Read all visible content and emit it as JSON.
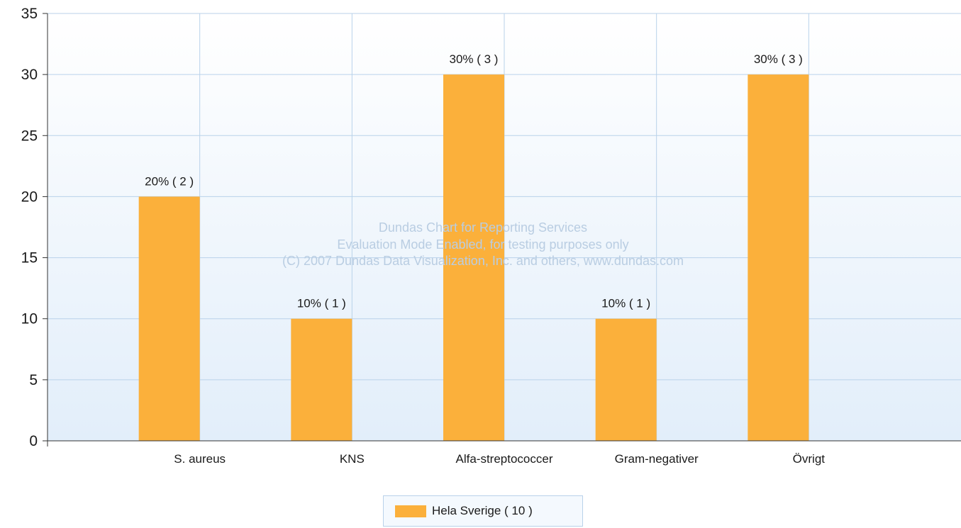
{
  "chart_data": {
    "type": "bar",
    "categories": [
      "S. aureus",
      "KNS",
      "Alfa-streptococcer",
      "Gram-negativer",
      "Övrigt"
    ],
    "series": [
      {
        "name": "Hela Sverige  ( 10 )",
        "color": "#fbb03b",
        "values": [
          20,
          10,
          30,
          10,
          30
        ],
        "labels": [
          "20% ( 2 )",
          "10% ( 1 )",
          "30% ( 3 )",
          "10% ( 1 )",
          "30% ( 3 )"
        ]
      }
    ],
    "title": "",
    "xlabel": "",
    "ylabel": "",
    "ylim": [
      0,
      35
    ],
    "yticks": [
      0,
      5,
      10,
      15,
      20,
      25,
      30,
      35
    ],
    "grid": true,
    "legend_position": "bottom-center",
    "watermark": [
      "Dundas Chart for Reporting Services",
      "Evaluation Mode Enabled, for testing purposes only",
      "(C) 2007 Dundas Data Visualization, Inc. and others, www.dundas.com"
    ]
  },
  "colors": {
    "grid": "#b9d2ea",
    "plot_top": "#ffffff",
    "plot_bottom": "#e2eefa",
    "axis": "#333333"
  }
}
